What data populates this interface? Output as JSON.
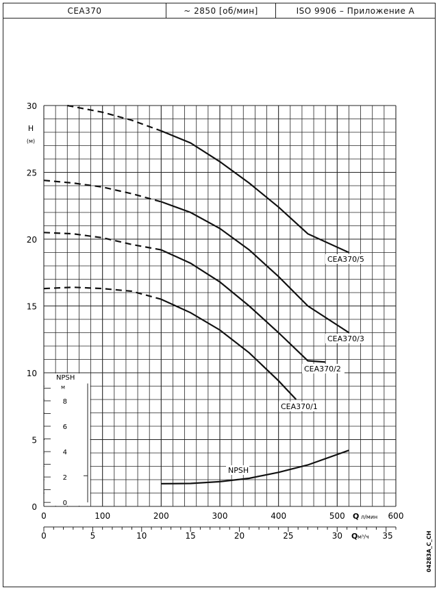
{
  "header": {
    "model": "CEA370",
    "speed": "~  2850 [об/мин]",
    "standard": "ISO  9906 – Приложение A"
  },
  "code_label": "04283A_C_CH",
  "chart_data": {
    "type": "line",
    "xlabel": "Q",
    "x_unit_primary": "л/мин",
    "x_unit_secondary": "м³/ч",
    "ylabel": "H",
    "y_unit": "(м)",
    "xlim": [
      0,
      600
    ],
    "ylim": [
      0,
      30
    ],
    "x_ticks": [
      0,
      100,
      200,
      300,
      400,
      500,
      600
    ],
    "y_ticks": [
      0,
      5,
      10,
      15,
      20,
      25,
      30
    ],
    "x2_ticks": [
      0,
      5,
      10,
      15,
      20,
      25,
      30,
      35
    ],
    "grid": true,
    "series": [
      {
        "name": "CEA370/5",
        "dashed": [
          [
            40,
            30.0
          ],
          [
            100,
            29.5
          ],
          [
            150,
            28.9
          ],
          [
            200,
            28.1
          ]
        ],
        "solid": [
          [
            200,
            28.1
          ],
          [
            250,
            27.2
          ],
          [
            300,
            25.8
          ],
          [
            350,
            24.2
          ],
          [
            400,
            22.4
          ],
          [
            450,
            20.4
          ],
          [
            520,
            19.0
          ]
        ]
      },
      {
        "name": "CEA370/3",
        "dashed": [
          [
            0,
            24.4
          ],
          [
            50,
            24.2
          ],
          [
            100,
            23.9
          ],
          [
            150,
            23.4
          ],
          [
            200,
            22.8
          ]
        ],
        "solid": [
          [
            200,
            22.8
          ],
          [
            250,
            22.0
          ],
          [
            300,
            20.8
          ],
          [
            350,
            19.2
          ],
          [
            400,
            17.2
          ],
          [
            450,
            15.0
          ],
          [
            520,
            13.0
          ]
        ]
      },
      {
        "name": "CEA370/2",
        "dashed": [
          [
            0,
            20.5
          ],
          [
            50,
            20.4
          ],
          [
            100,
            20.1
          ],
          [
            150,
            19.6
          ],
          [
            200,
            19.2
          ]
        ],
        "solid": [
          [
            200,
            19.2
          ],
          [
            250,
            18.2
          ],
          [
            300,
            16.8
          ],
          [
            350,
            15.0
          ],
          [
            400,
            13.0
          ],
          [
            450,
            10.9
          ],
          [
            480,
            10.8
          ]
        ]
      },
      {
        "name": "CEA370/1",
        "dashed": [
          [
            0,
            16.3
          ],
          [
            50,
            16.4
          ],
          [
            100,
            16.3
          ],
          [
            150,
            16.1
          ],
          [
            200,
            15.5
          ]
        ],
        "solid": [
          [
            200,
            15.5
          ],
          [
            250,
            14.5
          ],
          [
            300,
            13.2
          ],
          [
            350,
            11.5
          ],
          [
            400,
            9.4
          ],
          [
            430,
            8.0
          ]
        ]
      },
      {
        "name": "NPSH",
        "solid": [
          [
            200,
            1.7
          ],
          [
            250,
            1.72
          ],
          [
            300,
            1.85
          ],
          [
            350,
            2.1
          ],
          [
            400,
            2.55
          ],
          [
            450,
            3.1
          ],
          [
            520,
            4.2
          ]
        ]
      }
    ],
    "npsh_axis": {
      "title": "NPSH",
      "unit": "м",
      "ticks": [
        0,
        2,
        4,
        6,
        8
      ]
    }
  }
}
